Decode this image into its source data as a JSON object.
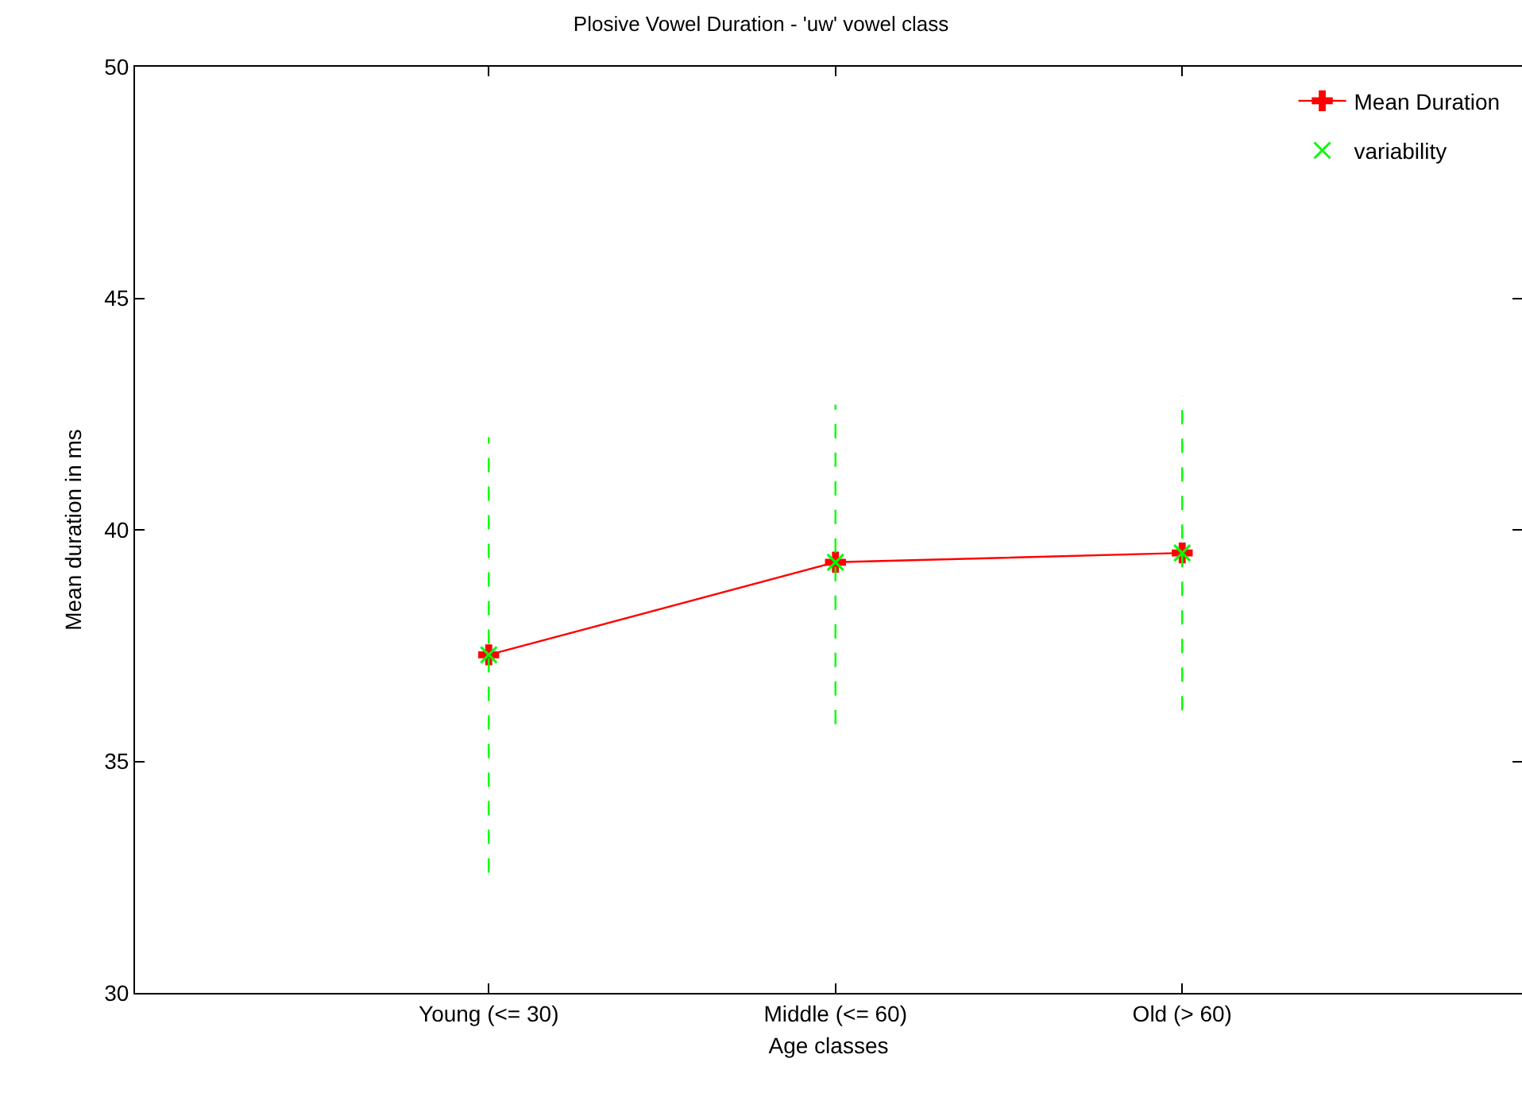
{
  "chart_data": {
    "type": "line",
    "title": "Plosive Vowel Duration - 'uw' vowel class",
    "xlabel": "Age classes",
    "ylabel": "Mean duration in ms",
    "categories": [
      "Young (<= 30)",
      "Middle (<= 60)",
      "Old (> 60)"
    ],
    "series": [
      {
        "name": "Mean Duration",
        "color": "#ff0000",
        "marker": "cross",
        "line_style": "solid",
        "values": [
          37.3,
          39.3,
          39.5
        ]
      },
      {
        "name": "variability",
        "color": "#00ff00",
        "type": "scatter",
        "marker": "x",
        "line_style": "dashed",
        "values": [
          37.3,
          39.3,
          39.5
        ],
        "errors": [
          [
            32.6,
            42.0
          ],
          [
            35.8,
            42.7
          ],
          [
            36.1,
            42.9
          ]
        ]
      }
    ],
    "ylim": [
      30,
      50
    ],
    "yticks": [
      30,
      35,
      40,
      45,
      50
    ],
    "legend": "top right"
  }
}
